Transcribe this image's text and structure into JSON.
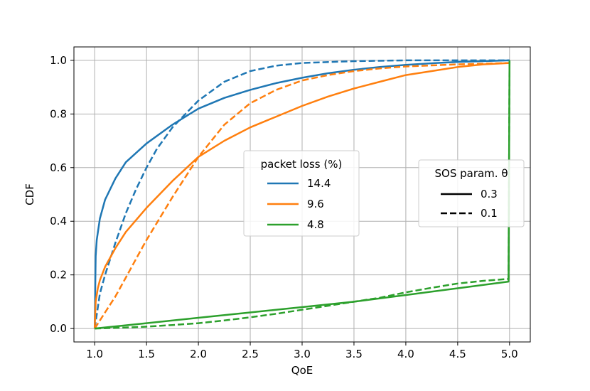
{
  "chart_data": {
    "type": "line",
    "title": "",
    "xlabel": "QoE",
    "ylabel": "CDF",
    "xlim": [
      0.8,
      5.2
    ],
    "ylim": [
      -0.05,
      1.05
    ],
    "grid": true,
    "xticks": [
      1.0,
      1.5,
      2.0,
      2.5,
      3.0,
      3.5,
      4.0,
      4.5,
      5.0
    ],
    "xtick_labels": [
      "1.0",
      "1.5",
      "2.0",
      "2.5",
      "3.0",
      "3.5",
      "4.0",
      "4.5",
      "5.0"
    ],
    "yticks": [
      0.0,
      0.2,
      0.4,
      0.6,
      0.8,
      1.0
    ],
    "ytick_labels": [
      "0.0",
      "0.2",
      "0.4",
      "0.6",
      "0.8",
      "1.0"
    ],
    "legend_loss": {
      "title": "packet loss (%)",
      "placement": "center",
      "entries": [
        {
          "label": "14.4",
          "color": "#1f77b4"
        },
        {
          "label": "9.6",
          "color": "#ff7f0e"
        },
        {
          "label": "4.8",
          "color": "#2ca02c"
        }
      ]
    },
    "legend_theta": {
      "title": "SOS param. θ",
      "placement": "center-right",
      "entries": [
        {
          "label": "0.3",
          "style": "solid"
        },
        {
          "label": "0.1",
          "style": "dashed"
        }
      ]
    },
    "series": [
      {
        "loss": "14.4",
        "theta": "0.3",
        "color": "#1f77b4",
        "style": "solid",
        "x": [
          1.0,
          1.01,
          1.02,
          1.05,
          1.1,
          1.2,
          1.3,
          1.5,
          1.75,
          2.0,
          2.25,
          2.5,
          2.75,
          3.0,
          3.25,
          3.5,
          3.75,
          4.0,
          4.25,
          4.5,
          4.75,
          5.0
        ],
        "y": [
          0.0,
          0.27,
          0.33,
          0.41,
          0.48,
          0.56,
          0.62,
          0.69,
          0.76,
          0.82,
          0.86,
          0.89,
          0.915,
          0.935,
          0.952,
          0.965,
          0.975,
          0.983,
          0.989,
          0.994,
          0.997,
          1.0
        ]
      },
      {
        "loss": "14.4",
        "theta": "0.1",
        "color": "#1f77b4",
        "style": "dashed",
        "x": [
          1.0,
          1.05,
          1.1,
          1.2,
          1.3,
          1.4,
          1.5,
          1.6,
          1.75,
          2.0,
          2.25,
          2.5,
          2.75,
          3.0,
          3.5,
          4.0,
          4.5,
          5.0
        ],
        "y": [
          0.0,
          0.13,
          0.2,
          0.32,
          0.43,
          0.52,
          0.6,
          0.67,
          0.75,
          0.85,
          0.92,
          0.96,
          0.98,
          0.99,
          0.997,
          1.0,
          1.0,
          1.0
        ]
      },
      {
        "loss": "9.6",
        "theta": "0.3",
        "color": "#ff7f0e",
        "style": "solid",
        "x": [
          1.0,
          1.01,
          1.03,
          1.05,
          1.1,
          1.2,
          1.3,
          1.5,
          1.75,
          2.0,
          2.25,
          2.5,
          2.75,
          3.0,
          3.25,
          3.5,
          3.75,
          4.0,
          4.25,
          4.5,
          4.75,
          5.0
        ],
        "y": [
          0.0,
          0.1,
          0.15,
          0.18,
          0.23,
          0.3,
          0.36,
          0.45,
          0.55,
          0.64,
          0.7,
          0.75,
          0.79,
          0.83,
          0.865,
          0.895,
          0.92,
          0.945,
          0.96,
          0.975,
          0.985,
          0.99
        ]
      },
      {
        "loss": "9.6",
        "theta": "0.1",
        "color": "#ff7f0e",
        "style": "dashed",
        "x": [
          1.0,
          1.05,
          1.1,
          1.2,
          1.3,
          1.4,
          1.5,
          1.75,
          2.0,
          2.25,
          2.5,
          2.75,
          3.0,
          3.25,
          3.5,
          3.75,
          4.0,
          4.5,
          5.0
        ],
        "y": [
          0.0,
          0.03,
          0.06,
          0.12,
          0.19,
          0.26,
          0.33,
          0.49,
          0.64,
          0.76,
          0.84,
          0.89,
          0.925,
          0.945,
          0.96,
          0.97,
          0.977,
          0.985,
          0.99
        ]
      },
      {
        "loss": "4.8",
        "theta": "0.3",
        "color": "#2ca02c",
        "style": "solid",
        "x": [
          1.0,
          1.5,
          2.0,
          2.5,
          3.0,
          3.5,
          4.0,
          4.5,
          4.99,
          5.0
        ],
        "y": [
          0.0,
          0.02,
          0.04,
          0.06,
          0.08,
          0.1,
          0.125,
          0.15,
          0.175,
          1.0
        ]
      },
      {
        "loss": "4.8",
        "theta": "0.1",
        "color": "#2ca02c",
        "style": "dashed",
        "x": [
          1.0,
          1.25,
          1.5,
          1.75,
          2.0,
          2.25,
          2.5,
          2.75,
          3.0,
          3.25,
          3.5,
          3.75,
          4.0,
          4.25,
          4.5,
          4.75,
          4.99,
          5.0
        ],
        "y": [
          0.0,
          0.003,
          0.007,
          0.013,
          0.02,
          0.03,
          0.042,
          0.055,
          0.07,
          0.085,
          0.1,
          0.115,
          0.135,
          0.152,
          0.168,
          0.178,
          0.185,
          1.0
        ]
      }
    ]
  }
}
